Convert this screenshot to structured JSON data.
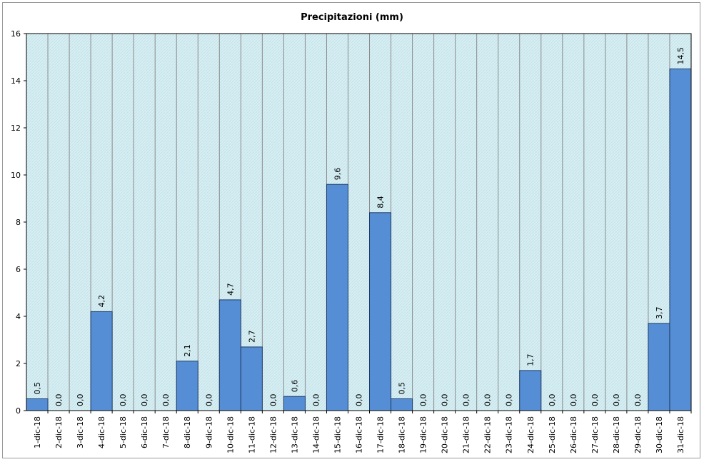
{
  "chart_data": {
    "type": "bar",
    "title": "Precipitazioni (mm)",
    "xlabel": "",
    "ylabel": "",
    "ylim": [
      0,
      16
    ],
    "yticks": [
      0,
      2,
      4,
      6,
      8,
      10,
      12,
      14,
      16
    ],
    "grid": true,
    "legend": "none",
    "categories": [
      "1-dic-18",
      "2-dic-18",
      "3-dic-18",
      "4-dic-18",
      "5-dic-18",
      "6-dic-18",
      "7-dic-18",
      "8-dic-18",
      "9-dic-18",
      "10-dic-18",
      "11-dic-18",
      "12-dic-18",
      "13-dic-18",
      "14-dic-18",
      "15-dic-18",
      "16-dic-18",
      "17-dic-18",
      "18-dic-18",
      "19-dic-18",
      "20-dic-18",
      "21-dic-18",
      "22-dic-18",
      "23-dic-18",
      "24-dic-18",
      "25-dic-18",
      "26-dic-18",
      "27-dic-18",
      "28-dic-18",
      "29-dic-18",
      "30-dic-18",
      "31-dic-18"
    ],
    "values": [
      0.5,
      0.0,
      0.0,
      4.2,
      0.0,
      0.0,
      0.0,
      2.1,
      0.0,
      4.7,
      2.7,
      0.0,
      0.6,
      0.0,
      9.6,
      0.0,
      8.4,
      0.5,
      0.0,
      0.0,
      0.0,
      0.0,
      0.0,
      1.7,
      0.0,
      0.0,
      0.0,
      0.0,
      0.0,
      3.7,
      14.5
    ],
    "data_labels": [
      "0,5",
      "0,0",
      "0,0",
      "4,2",
      "0,0",
      "0,0",
      "0,0",
      "2,1",
      "0,0",
      "4,7",
      "2,7",
      "0,0",
      "0,6",
      "0,0",
      "9,6",
      "0,0",
      "8,4",
      "0,5",
      "0,0",
      "0,0",
      "0,0",
      "0,0",
      "0,0",
      "1,7",
      "0,0",
      "0,0",
      "0,0",
      "0,0",
      "0,0",
      "3,7",
      "14,5"
    ],
    "colors": {
      "bar_fill": "#558ed5",
      "bar_stroke": "#1f3a63",
      "plot_bg": "#d9eef2",
      "plot_hatch": "#bfe3ea",
      "grid": "#8a8a8a",
      "frame": "#9a9a9a"
    }
  }
}
